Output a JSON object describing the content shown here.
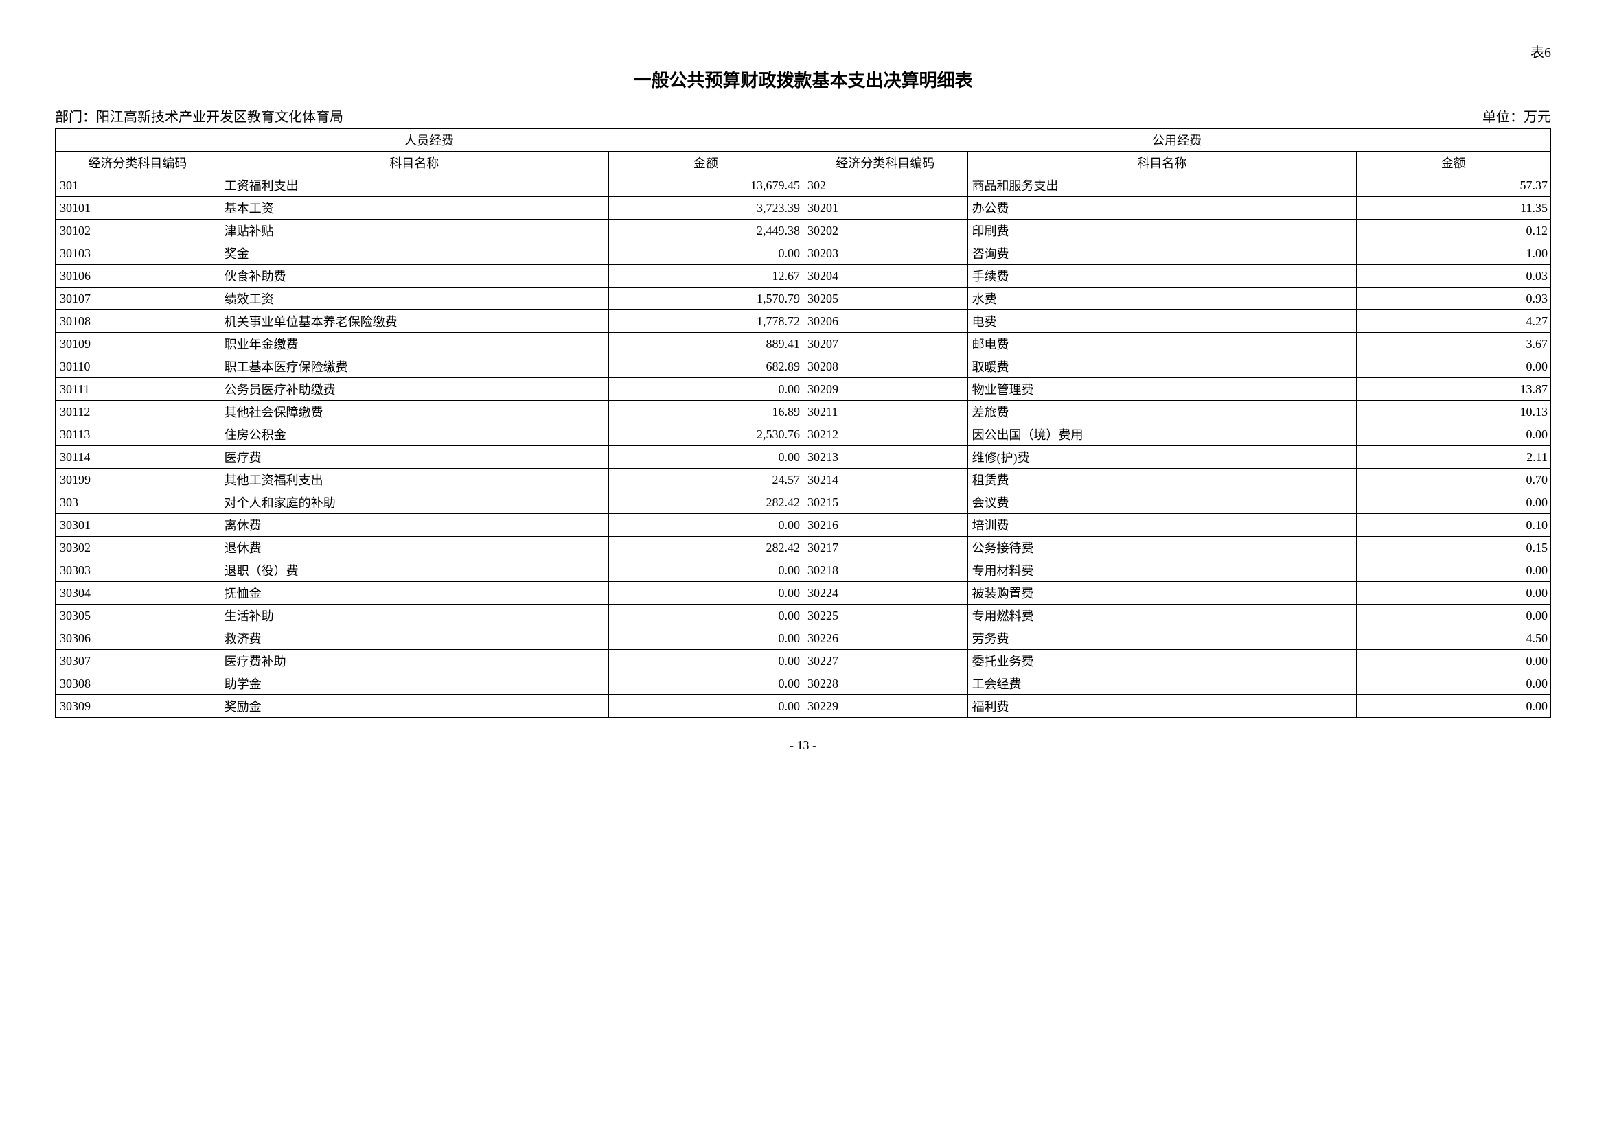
{
  "table_number": "表6",
  "title": "一般公共预算财政拨款基本支出决算明细表",
  "department_label": "部门：",
  "department_name": "阳江高新技术产业开发区教育文化体育局",
  "unit_label": "单位：万元",
  "page_number": "- 13 -",
  "headers": {
    "section1": "人员经费",
    "section2": "公用经费",
    "code": "经济分类科目编码",
    "name": "科目名称",
    "amount": "金额"
  },
  "rows": [
    {
      "c1": "301",
      "n1": "工资福利支出",
      "a1": "13,679.45",
      "c2": "302",
      "n2": "商品和服务支出",
      "a2": "57.37"
    },
    {
      "c1": "30101",
      "n1": "基本工资",
      "a1": "3,723.39",
      "c2": "30201",
      "n2": "办公费",
      "a2": "11.35"
    },
    {
      "c1": "30102",
      "n1": "津贴补贴",
      "a1": "2,449.38",
      "c2": "30202",
      "n2": "印刷费",
      "a2": "0.12"
    },
    {
      "c1": "30103",
      "n1": "奖金",
      "a1": "0.00",
      "c2": "30203",
      "n2": "咨询费",
      "a2": "1.00"
    },
    {
      "c1": "30106",
      "n1": "伙食补助费",
      "a1": "12.67",
      "c2": "30204",
      "n2": "手续费",
      "a2": "0.03"
    },
    {
      "c1": "30107",
      "n1": "绩效工资",
      "a1": "1,570.79",
      "c2": "30205",
      "n2": "水费",
      "a2": "0.93"
    },
    {
      "c1": "30108",
      "n1": "机关事业单位基本养老保险缴费",
      "a1": "1,778.72",
      "c2": "30206",
      "n2": "电费",
      "a2": "4.27"
    },
    {
      "c1": "30109",
      "n1": "职业年金缴费",
      "a1": "889.41",
      "c2": "30207",
      "n2": "邮电费",
      "a2": "3.67"
    },
    {
      "c1": "30110",
      "n1": "职工基本医疗保险缴费",
      "a1": "682.89",
      "c2": "30208",
      "n2": "取暖费",
      "a2": "0.00"
    },
    {
      "c1": "30111",
      "n1": "公务员医疗补助缴费",
      "a1": "0.00",
      "c2": "30209",
      "n2": "物业管理费",
      "a2": "13.87"
    },
    {
      "c1": "30112",
      "n1": "其他社会保障缴费",
      "a1": "16.89",
      "c2": "30211",
      "n2": "差旅费",
      "a2": "10.13"
    },
    {
      "c1": "30113",
      "n1": "住房公积金",
      "a1": "2,530.76",
      "c2": "30212",
      "n2": "因公出国（境）费用",
      "a2": "0.00"
    },
    {
      "c1": "30114",
      "n1": "医疗费",
      "a1": "0.00",
      "c2": "30213",
      "n2": "维修(护)费",
      "a2": "2.11"
    },
    {
      "c1": "30199",
      "n1": "其他工资福利支出",
      "a1": "24.57",
      "c2": "30214",
      "n2": "租赁费",
      "a2": "0.70"
    },
    {
      "c1": "303",
      "n1": "对个人和家庭的补助",
      "a1": "282.42",
      "c2": "30215",
      "n2": "会议费",
      "a2": "0.00"
    },
    {
      "c1": "30301",
      "n1": "离休费",
      "a1": "0.00",
      "c2": "30216",
      "n2": "培训费",
      "a2": "0.10"
    },
    {
      "c1": "30302",
      "n1": "退休费",
      "a1": "282.42",
      "c2": "30217",
      "n2": "公务接待费",
      "a2": "0.15"
    },
    {
      "c1": "30303",
      "n1": "退职（役）费",
      "a1": "0.00",
      "c2": "30218",
      "n2": "专用材料费",
      "a2": "0.00"
    },
    {
      "c1": "30304",
      "n1": "抚恤金",
      "a1": "0.00",
      "c2": "30224",
      "n2": "被装购置费",
      "a2": "0.00"
    },
    {
      "c1": "30305",
      "n1": "生活补助",
      "a1": "0.00",
      "c2": "30225",
      "n2": "专用燃料费",
      "a2": "0.00"
    },
    {
      "c1": "30306",
      "n1": "救济费",
      "a1": "0.00",
      "c2": "30226",
      "n2": "劳务费",
      "a2": "4.50"
    },
    {
      "c1": "30307",
      "n1": "医疗费补助",
      "a1": "0.00",
      "c2": "30227",
      "n2": "委托业务费",
      "a2": "0.00"
    },
    {
      "c1": "30308",
      "n1": "助学金",
      "a1": "0.00",
      "c2": "30228",
      "n2": "工会经费",
      "a2": "0.00"
    },
    {
      "c1": "30309",
      "n1": "奖励金",
      "a1": "0.00",
      "c2": "30229",
      "n2": "福利费",
      "a2": "0.00"
    }
  ]
}
